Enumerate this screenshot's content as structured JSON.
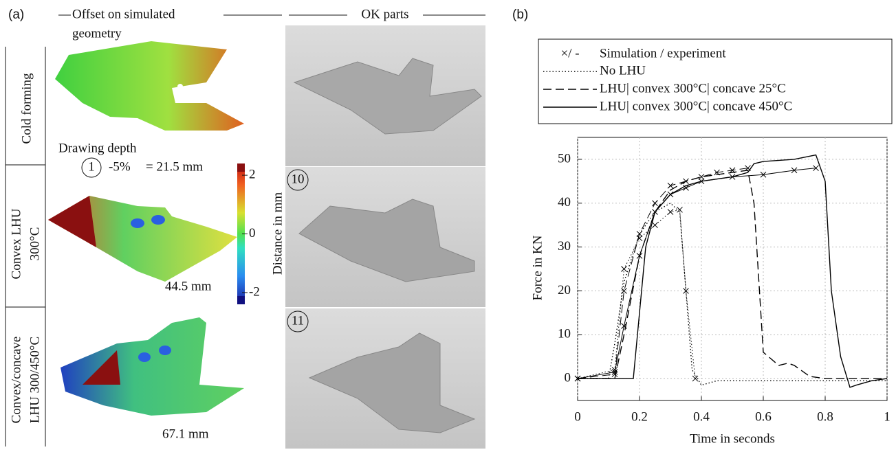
{
  "panel_a": {
    "label": "(a)",
    "header_left": [
      "Offset on simulated",
      "geometry"
    ],
    "header_right": "OK parts",
    "rows": [
      [
        "Cold forming"
      ],
      [
        "Convex LHU",
        "300°C"
      ],
      [
        "Convex/concave",
        "LHU 300/450°C"
      ]
    ],
    "drawing_depth": {
      "title": "Drawing depth",
      "marker": "1",
      "percent": "-5%",
      "depth": "= 21.5 mm"
    },
    "depths": [
      "44.5 mm",
      "67.1 mm"
    ],
    "colorbar": {
      "label": "Distance in mm",
      "lim": [
        -2.4,
        2.4
      ],
      "ticks": [
        2,
        0,
        -2
      ]
    },
    "photo_labels": [
      "10",
      "11"
    ]
  },
  "chart_data": {
    "type": "line",
    "panel_label": "(b)",
    "xlabel": "Time in seconds",
    "ylabel": "Force in KN",
    "xlim": [
      0,
      1
    ],
    "xticks": [
      0,
      0.2,
      0.4,
      0.6,
      0.8,
      1
    ],
    "ylim": [
      -5,
      55
    ],
    "yticks": [
      0,
      10,
      20,
      30,
      40,
      50
    ],
    "grid": true,
    "legend_header": {
      "symbol": "×/ -",
      "label": "Simulation / experiment"
    },
    "series": [
      {
        "name": "No LHU",
        "style": "dotted",
        "color": "#000000",
        "experiment": {
          "x": [
            0,
            0.1,
            0.12,
            0.15,
            0.2,
            0.25,
            0.3,
            0.33,
            0.35,
            0.37,
            0.4,
            0.45,
            0.6,
            1
          ],
          "values": [
            0,
            0,
            8,
            22,
            33,
            38,
            40,
            38,
            20,
            2,
            -1.5,
            -0.5,
            -0.5,
            -0.5
          ]
        },
        "simulation": {
          "x": [
            0,
            0.12,
            0.15,
            0.2,
            0.25,
            0.3,
            0.33,
            0.35,
            0.38
          ],
          "values": [
            0,
            2,
            25,
            32,
            35,
            38,
            38.5,
            20,
            0
          ]
        }
      },
      {
        "name": "LHU| convex 300°C| concave 25°C",
        "style": "dashed",
        "color": "#000000",
        "experiment": {
          "x": [
            0,
            0.12,
            0.15,
            0.2,
            0.25,
            0.3,
            0.35,
            0.4,
            0.5,
            0.55,
            0.57,
            0.6,
            0.65,
            0.68,
            0.7,
            0.75,
            0.8,
            1
          ],
          "values": [
            0,
            0,
            10,
            28,
            38,
            43,
            45,
            46,
            47,
            47.5,
            40,
            6,
            3,
            3.5,
            3,
            0.5,
            0,
            0
          ]
        },
        "simulation": {
          "x": [
            0,
            0.12,
            0.15,
            0.2,
            0.25,
            0.3,
            0.35,
            0.4,
            0.45,
            0.5,
            0.55
          ],
          "values": [
            0,
            1,
            20,
            33,
            40,
            44,
            45,
            46,
            47,
            47.5,
            48
          ]
        }
      },
      {
        "name": "LHU| convex 300°C| concave 450°C",
        "style": "solid",
        "color": "#000000",
        "experiment": {
          "x": [
            0,
            0.18,
            0.2,
            0.22,
            0.25,
            0.3,
            0.35,
            0.4,
            0.5,
            0.55,
            0.57,
            0.6,
            0.7,
            0.77,
            0.8,
            0.82,
            0.85,
            0.88,
            0.9,
            0.95,
            1
          ],
          "values": [
            0,
            0,
            15,
            30,
            38,
            42,
            44,
            45,
            46,
            47,
            49,
            49.5,
            50,
            51,
            45,
            20,
            5,
            -2,
            -1.5,
            -0.5,
            0
          ]
        },
        "simulation": {
          "x": [
            0,
            0.12,
            0.15,
            0.2,
            0.25,
            0.3,
            0.35,
            0.4,
            0.5,
            0.6,
            0.7,
            0.77
          ],
          "values": [
            0,
            1.5,
            12,
            28,
            38,
            42,
            43.5,
            45,
            46,
            46.5,
            47.5,
            48
          ]
        }
      }
    ]
  }
}
